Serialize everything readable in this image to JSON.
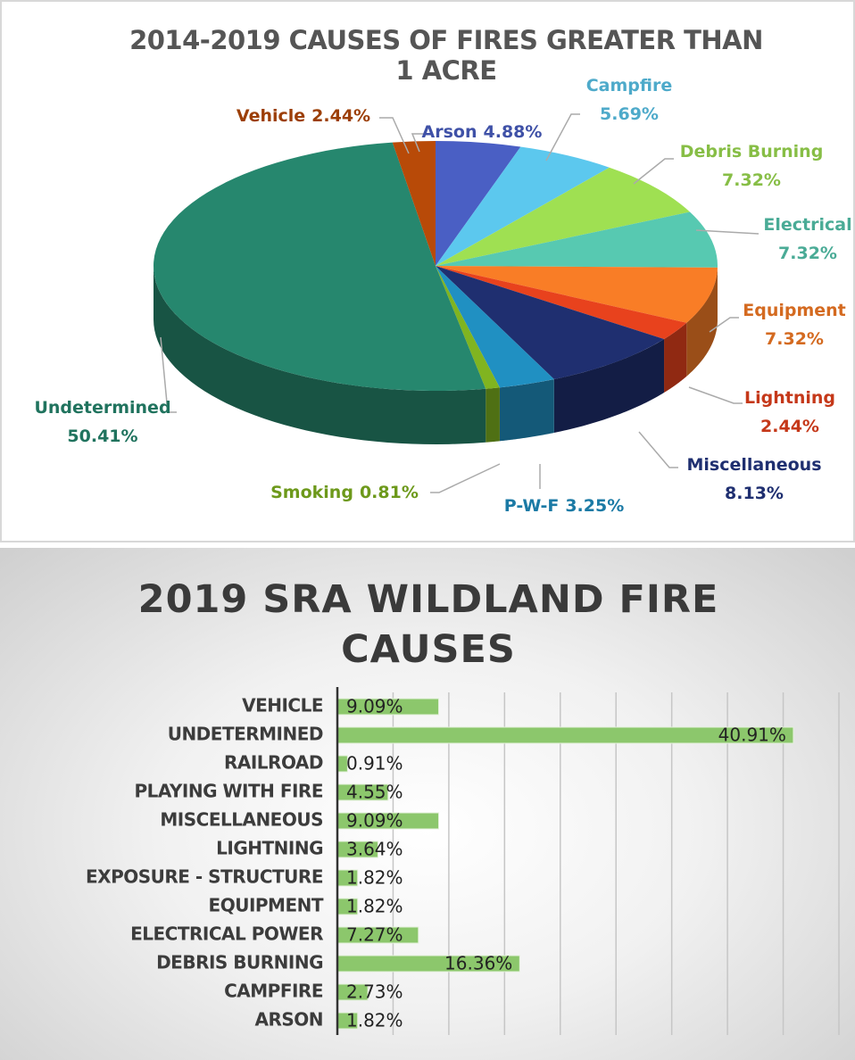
{
  "chart_data": [
    {
      "type": "pie",
      "title": "2014-2019 CAUSES OF FIRES GREATER THAN 1 ACRE",
      "categories": [
        "Arson",
        "Campfire",
        "Debris Burning",
        "Electrical",
        "Equipment",
        "Lightning",
        "Miscellaneous",
        "P-W-F",
        "Smoking",
        "Undetermined",
        "Vehicle"
      ],
      "values": [
        4.88,
        5.69,
        7.32,
        7.32,
        7.32,
        2.44,
        8.13,
        3.25,
        0.81,
        50.41,
        2.44
      ],
      "value_labels": [
        "4.88%",
        "5.69%",
        "7.32%",
        "7.32%",
        "7.32%",
        "2.44%",
        "8.13%",
        "3.25%",
        "0.81%",
        "50.41%",
        "2.44%"
      ],
      "colors": [
        "#4a5fc4",
        "#5cc8ee",
        "#9fe052",
        "#57c9b1",
        "#f97d26",
        "#e8421d",
        "#1f2f70",
        "#2090c2",
        "#80b420",
        "#26876e",
        "#b84a08"
      ]
    },
    {
      "type": "bar",
      "horizontal": true,
      "title": "2019 SRA WILDLAND FIRE CAUSES",
      "categories": [
        "VEHICLE",
        "UNDETERMINED",
        "RAILROAD",
        "PLAYING WITH FIRE",
        "MISCELLANEOUS",
        "LIGHTNING",
        "EXPOSURE - STRUCTURE",
        "EQUIPMENT",
        "ELECTRICAL POWER",
        "DEBRIS BURNING",
        "CAMPFIRE",
        "ARSON"
      ],
      "values": [
        9.09,
        40.91,
        0.91,
        4.55,
        9.09,
        3.64,
        1.82,
        1.82,
        7.27,
        16.36,
        2.73,
        1.82
      ],
      "value_labels": [
        "9.09%",
        "40.91%",
        "0.91%",
        "4.55%",
        "9.09%",
        "3.64%",
        "1.82%",
        "1.82%",
        "7.27%",
        "16.36%",
        "2.73%",
        "1.82%"
      ],
      "color": "#8cc76c",
      "xlim": [
        0,
        45
      ],
      "xticks": [
        0,
        5,
        10,
        15,
        20,
        25,
        30,
        35,
        40,
        45
      ],
      "grid": true
    }
  ]
}
